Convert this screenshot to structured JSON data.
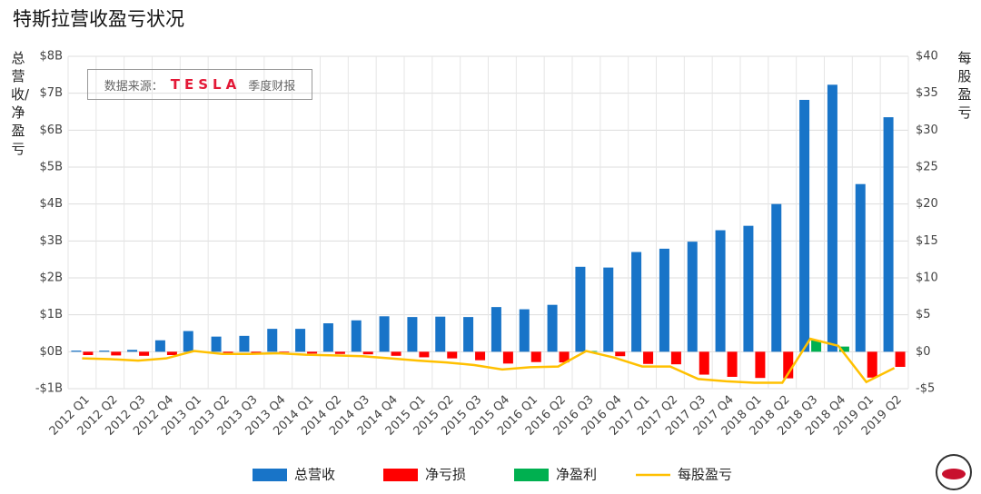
{
  "chart_data": {
    "type": "bar",
    "title": "特斯拉营收盈亏状况",
    "y_label": "总营收/净盈亏",
    "y2_label": "每股盈亏",
    "source": {
      "prefix": "数据来源：",
      "brand": "TESLA",
      "suffix": "季度财报"
    },
    "categories": [
      "2012 Q1",
      "2012 Q2",
      "2012 Q3",
      "2012 Q4",
      "2013 Q1",
      "2013 Q2",
      "2013 Q3",
      "2013 Q4",
      "2014 Q1",
      "2014 Q2",
      "2014 Q3",
      "2014 Q4",
      "2015 Q1",
      "2015 Q2",
      "2015 Q3",
      "2015 Q4",
      "2016 Q1",
      "2016 Q2",
      "2016 Q3",
      "2016 Q4",
      "2017 Q1",
      "2017 Q2",
      "2017 Q3",
      "2017 Q4",
      "2018 Q1",
      "2018 Q2",
      "2018 Q3",
      "2018 Q4",
      "2019 Q1",
      "2019 Q2"
    ],
    "series": [
      {
        "name": "总营收",
        "color": "#1874c8",
        "values": [
          0.03,
          0.03,
          0.05,
          0.31,
          0.56,
          0.41,
          0.43,
          0.62,
          0.62,
          0.77,
          0.85,
          0.96,
          0.94,
          0.95,
          0.94,
          1.21,
          1.15,
          1.27,
          2.3,
          2.28,
          2.7,
          2.79,
          2.98,
          3.29,
          3.41,
          4.0,
          6.82,
          7.23,
          4.54,
          6.35
        ]
      },
      {
        "name": "净亏损",
        "color": "#ff0000",
        "values": [
          -0.09,
          -0.1,
          -0.11,
          -0.09,
          null,
          -0.03,
          -0.04,
          -0.02,
          -0.05,
          -0.06,
          -0.07,
          -0.11,
          -0.15,
          -0.18,
          -0.23,
          -0.32,
          -0.28,
          -0.29,
          null,
          -0.12,
          -0.33,
          -0.34,
          -0.62,
          -0.68,
          -0.71,
          -0.72,
          null,
          null,
          -0.7,
          -0.41
        ]
      },
      {
        "name": "净盈利",
        "color": "#00b050",
        "values": [
          null,
          null,
          null,
          null,
          0.01,
          null,
          null,
          null,
          null,
          null,
          null,
          null,
          null,
          null,
          null,
          null,
          null,
          null,
          0.02,
          null,
          null,
          null,
          null,
          null,
          null,
          null,
          0.31,
          0.14,
          null,
          null
        ]
      },
      {
        "name": "每股盈亏",
        "color": "#ffc000",
        "type": "line",
        "axis": "y2",
        "values": [
          -0.9,
          -1.0,
          -1.2,
          -0.9,
          0.1,
          -0.3,
          -0.3,
          -0.2,
          -0.4,
          -0.5,
          -0.6,
          -0.9,
          -1.2,
          -1.45,
          -1.8,
          -2.4,
          -2.1,
          -2.0,
          0.1,
          -0.8,
          -2.0,
          -2.0,
          -3.7,
          -4.0,
          -4.2,
          -4.2,
          1.75,
          0.8,
          -4.1,
          -2.2
        ]
      }
    ],
    "ylim": [
      -1,
      8
    ],
    "yticks": [
      {
        "value": -1,
        "label": "-$1B"
      },
      {
        "value": 0,
        "label": "$0B"
      },
      {
        "value": 1,
        "label": "$1B"
      },
      {
        "value": 2,
        "label": "$2B"
      },
      {
        "value": 3,
        "label": "$3B"
      },
      {
        "value": 4,
        "label": "$4B"
      },
      {
        "value": 5,
        "label": "$5B"
      },
      {
        "value": 6,
        "label": "$6B"
      },
      {
        "value": 7,
        "label": "$7B"
      },
      {
        "value": 8,
        "label": "$8B"
      }
    ],
    "y2lim": [
      -5,
      40
    ],
    "y2ticks": [
      {
        "value": -5,
        "label": "-$5"
      },
      {
        "value": 0,
        "label": "$0"
      },
      {
        "value": 5,
        "label": "$5"
      },
      {
        "value": 10,
        "label": "$10"
      },
      {
        "value": 15,
        "label": "$15"
      },
      {
        "value": 20,
        "label": "$20"
      },
      {
        "value": 25,
        "label": "$25"
      },
      {
        "value": 30,
        "label": "$30"
      },
      {
        "value": 35,
        "label": "$35"
      },
      {
        "value": 40,
        "label": "$40"
      }
    ],
    "grid": true
  }
}
